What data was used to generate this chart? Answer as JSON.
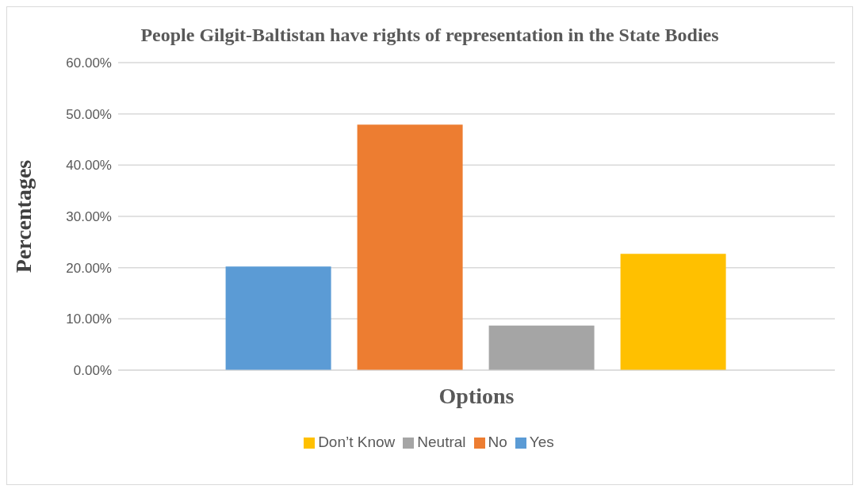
{
  "chart_data": {
    "type": "bar",
    "title": "People Gilgit-Baltistan have rights of representation in the State Bodies",
    "xlabel": "Options",
    "ylabel": "Percentages",
    "categories": [
      null
    ],
    "series": [
      {
        "name": "Yes",
        "color": "#5b9bd5",
        "values": [
          20.2
        ]
      },
      {
        "name": "No",
        "color": "#ed7d31",
        "values": [
          47.9
        ]
      },
      {
        "name": "Neutral",
        "color": "#a5a5a5",
        "values": [
          8.7
        ]
      },
      {
        "name": "Don’t Know",
        "color": "#ffc000",
        "values": [
          22.7
        ]
      }
    ],
    "ylim": [
      0,
      60
    ],
    "yticks": [
      {
        "value": 0,
        "label": "0.00%"
      },
      {
        "value": 10,
        "label": "10.00%"
      },
      {
        "value": 20,
        "label": "20.00%"
      },
      {
        "value": 30,
        "label": "30.00%"
      },
      {
        "value": 40,
        "label": "40.00%"
      },
      {
        "value": 50,
        "label": "50.00%"
      },
      {
        "value": 60,
        "label": "60.00%"
      }
    ],
    "grid": "y",
    "legend": "bottom"
  }
}
